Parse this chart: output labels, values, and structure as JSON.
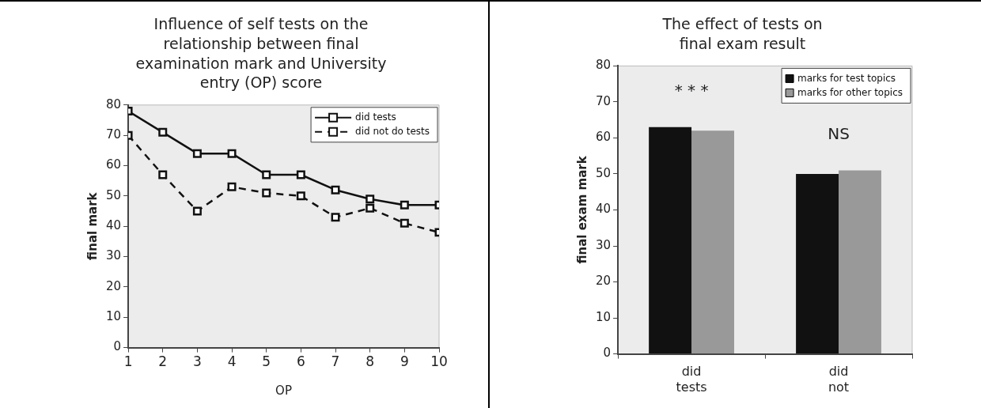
{
  "chart_data": [
    {
      "type": "line",
      "title": "Influence of self tests on the relationship between final examination mark and University entry (OP) score",
      "xlabel": "OP",
      "ylabel": "final mark",
      "x": [
        1,
        2,
        3,
        4,
        5,
        6,
        7,
        8,
        9,
        10
      ],
      "series": [
        {
          "name": "did tests",
          "color": "#111111",
          "line_style": "solid",
          "values": [
            78,
            71,
            64,
            64,
            57,
            57,
            52,
            49,
            47,
            47
          ]
        },
        {
          "name": "did not do tests",
          "color": "#111111",
          "line_style": "dashed",
          "values": [
            70,
            57,
            45,
            53,
            51,
            50,
            43,
            46,
            41,
            38
          ]
        }
      ],
      "marker": "square",
      "xlim": [
        1,
        10
      ],
      "xticks": [
        1,
        2,
        3,
        4,
        5,
        6,
        7,
        8,
        9,
        10
      ],
      "ylim": [
        0,
        80
      ],
      "yticks": [
        0,
        10,
        20,
        30,
        40,
        50,
        60,
        70,
        80
      ],
      "legend": "top right"
    },
    {
      "type": "bar",
      "title": "The effect of tests on final exam result",
      "ylabel": "final exam mark",
      "categories": [
        "did tests",
        "did not"
      ],
      "series": [
        {
          "name": "marks for test topics",
          "color": "#111111",
          "values": [
            63,
            50
          ]
        },
        {
          "name": "marks for other topics",
          "color": "#999999",
          "values": [
            62,
            51
          ]
        }
      ],
      "ylim": [
        0,
        80
      ],
      "yticks": [
        0,
        10,
        20,
        30,
        40,
        50,
        60,
        70,
        80
      ],
      "legend": "top right",
      "annotations": [
        "* * *",
        "NS"
      ]
    }
  ]
}
